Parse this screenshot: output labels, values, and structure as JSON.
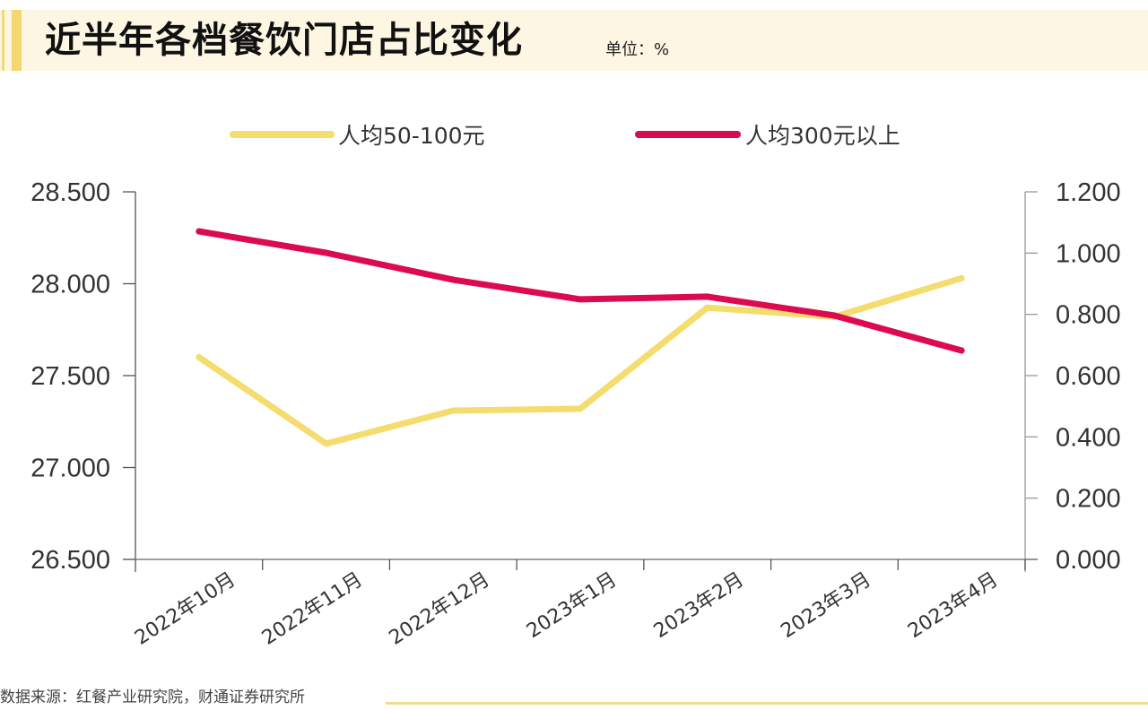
{
  "header": {
    "title": "近半年各档餐饮门店占比变化",
    "unit": "单位：%"
  },
  "footer": {
    "source": "数据来源：红餐产业研究院，财通证券研究所"
  },
  "colors": {
    "series_1": "#F5DC6E",
    "series_2": "#DC0A4F",
    "accent": "#F3D770",
    "band": "#FDF6E3"
  },
  "chart_data": {
    "type": "line",
    "title": "近半年各档餐饮门店占比变化",
    "unit": "%",
    "categories": [
      "2022年10月",
      "2022年11月",
      "2022年12月",
      "2023年1月",
      "2023年2月",
      "2023年3月",
      "2023年4月"
    ],
    "series": [
      {
        "name": "人均50-100元",
        "axis": "left",
        "values": [
          27.6,
          27.13,
          27.31,
          27.32,
          27.87,
          27.82,
          28.03
        ]
      },
      {
        "name": "人均300元以上",
        "axis": "right",
        "values": [
          1.071,
          1.001,
          0.913,
          0.849,
          0.858,
          0.796,
          0.682
        ]
      }
    ],
    "y_left": {
      "range": [
        26.5,
        28.5
      ],
      "ticks": [
        "28.500",
        "28.000",
        "27.500",
        "27.000",
        "26.500"
      ],
      "tick_values": [
        28.5,
        28.0,
        27.5,
        27.0,
        26.5
      ]
    },
    "y_right": {
      "range": [
        0,
        1.2
      ],
      "ticks": [
        "1.200",
        "1.000",
        "0.800",
        "0.600",
        "0.400",
        "0.200",
        "0.000"
      ],
      "tick_values": [
        1.2,
        1.0,
        0.8,
        0.6,
        0.4,
        0.2,
        0.0
      ]
    },
    "xlabel": "",
    "ylabel": "",
    "grid": false,
    "legend": "top-center"
  }
}
